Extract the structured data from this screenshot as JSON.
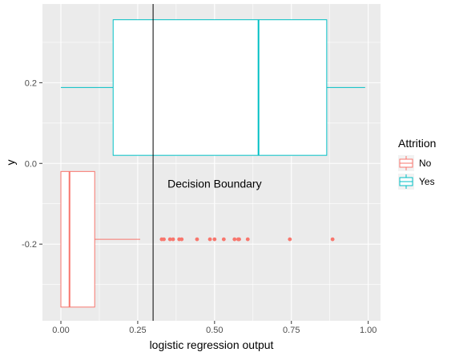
{
  "chart_data": {
    "type": "boxplot",
    "title": "",
    "xlabel": "logistic regression output",
    "ylabel": "y",
    "xlim": [
      -0.06,
      1.04
    ],
    "ylim": [
      -0.39,
      0.395
    ],
    "x_ticks": [
      0.0,
      0.25,
      0.5,
      0.75,
      1.0
    ],
    "x_tick_labels": [
      "0.00",
      "0.25",
      "0.50",
      "0.75",
      "1.00"
    ],
    "y_ticks": [
      -0.2,
      0.0,
      0.2
    ],
    "y_tick_labels": [
      "-0.2",
      "0.0",
      "0.2"
    ],
    "grid": true,
    "legend": {
      "title": "Attrition",
      "placement": "right",
      "entries": [
        "No",
        "Yes"
      ]
    },
    "series": [
      {
        "name": "No",
        "color": "#F8766D",
        "y_center": -0.188,
        "y_low": -0.356,
        "y_high": -0.02,
        "whisker_low": 0.0,
        "q1": 0.0,
        "median": 0.028,
        "q3": 0.11,
        "whisker_high": 0.258,
        "outliers": [
          0.328,
          0.335,
          0.355,
          0.365,
          0.385,
          0.393,
          0.443,
          0.485,
          0.5,
          0.53,
          0.565,
          0.577,
          0.58,
          0.608,
          0.745,
          0.884
        ]
      },
      {
        "name": "Yes",
        "color": "#00BFC4",
        "y_center": 0.188,
        "y_low": 0.02,
        "y_high": 0.356,
        "whisker_low": 0.0,
        "q1": 0.17,
        "median": 0.643,
        "q3": 0.865,
        "whisker_high": 0.99,
        "outliers": []
      }
    ],
    "annotations": [
      {
        "type": "vline",
        "x": 0.3,
        "color": "#000000"
      },
      {
        "type": "text",
        "text": "Decision Boundary",
        "x": 0.5,
        "y": -0.05
      }
    ]
  }
}
